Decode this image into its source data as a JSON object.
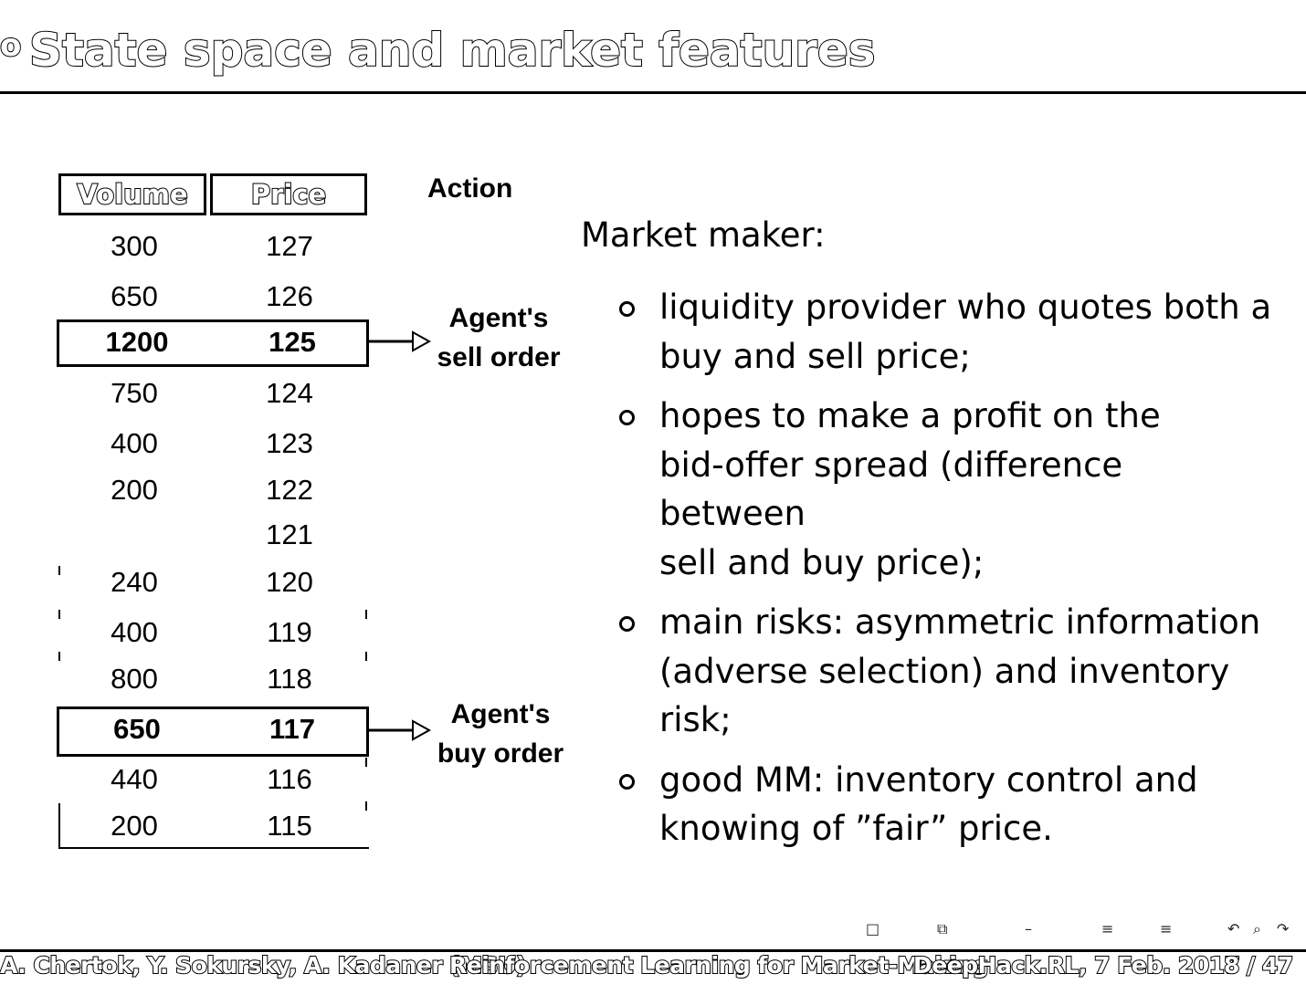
{
  "slide": {
    "title_prefix": "o",
    "title": "State space and market features"
  },
  "order_book": {
    "headers": {
      "volume": "Volume",
      "price": "Price"
    },
    "rows": [
      {
        "volume": "300",
        "price": "127"
      },
      {
        "volume": "650",
        "price": "126"
      },
      {
        "volume": "1200",
        "price": "125"
      },
      {
        "volume": "750",
        "price": "124"
      },
      {
        "volume": "400",
        "price": "123"
      },
      {
        "volume": "200",
        "price": "122"
      },
      {
        "volume": "",
        "price": "121"
      },
      {
        "volume": "240",
        "price": "120"
      },
      {
        "volume": "400",
        "price": "119"
      },
      {
        "volume": "800",
        "price": "118"
      },
      {
        "volume": "650",
        "price": "117"
      },
      {
        "volume": "440",
        "price": "116"
      },
      {
        "volume": "200",
        "price": "115"
      }
    ]
  },
  "action": {
    "title": "Action",
    "sell_label": [
      "Agent's",
      "sell order"
    ],
    "buy_label": [
      "Agent's",
      "buy order"
    ]
  },
  "market_maker": {
    "heading": "Market maker:",
    "bullets": [
      [
        "liquidity provider who quotes both a",
        "buy and sell price;"
      ],
      [
        "hopes to make a profit on the",
        "bid-offer spread (difference between",
        "sell and buy price);"
      ],
      [
        "main risks: asymmetric information",
        "(adverse selection) and inventory",
        "risk;"
      ],
      [
        "good MM: inventory control and",
        "knowing of ”fair” price."
      ]
    ]
  },
  "footer": {
    "authors": "A. Chertok, Y. Sokursky, A. Kadaner (MSU)",
    "talk_title": "Reinforcement Learning for Market-Making",
    "event": "DeepHack.RL, 7 Feb. 2017",
    "page": "8 / 47"
  }
}
